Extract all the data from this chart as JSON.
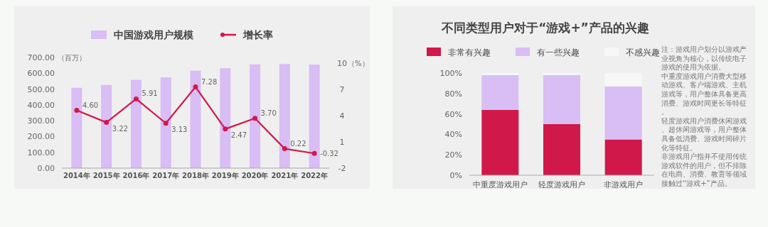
{
  "chart_data": [
    {
      "type": "bar",
      "categories": [
        "2014年",
        "2015年",
        "2016年",
        "2017年",
        "2018年",
        "2019年",
        "2020年",
        "2021年",
        "2022年"
      ],
      "series": [
        {
          "name": "中国游戏用户规模",
          "type": "bar",
          "color": "#d9bdf5",
          "values": [
            508,
            526,
            558,
            574,
            616,
            632,
            656,
            658,
            655
          ]
        },
        {
          "name": "增长率",
          "type": "line",
          "axis": "y2",
          "color": "#d0194a",
          "marker": "circle",
          "values": [
            4.6,
            3.22,
            5.91,
            3.13,
            7.28,
            2.47,
            3.7,
            0.22,
            -0.32
          ],
          "value_labels": [
            "4.60",
            "3.22",
            "5.91",
            "3.13",
            "7.28",
            "2.47",
            "3.70",
            "0.22",
            "-0.32"
          ]
        }
      ],
      "ylabel": "（百万）",
      "y2label": "（%）",
      "ylim": [
        0,
        700
      ],
      "yticks": [
        {
          "value": 0,
          "label": "0.00"
        },
        {
          "value": 100,
          "label": "100.00"
        },
        {
          "value": 200,
          "label": "200.00"
        },
        {
          "value": 300,
          "label": "300.00"
        },
        {
          "value": 400,
          "label": "400.00"
        },
        {
          "value": 500,
          "label": "500.00"
        },
        {
          "value": 600,
          "label": "600.00"
        },
        {
          "value": 700,
          "label": "700.00"
        }
      ],
      "y2lim": [
        -2,
        10
      ],
      "y2ticks": [
        -2,
        1,
        4,
        7,
        10
      ],
      "legend": "top"
    },
    {
      "type": "bar",
      "title": "不同类型用户对于“游戏+”产品的兴趣",
      "categories": [
        "中重度游戏用户",
        "轻度游戏用户",
        "非游戏用户"
      ],
      "stacked": true,
      "series": [
        {
          "name": "非常有兴趣",
          "color": "#d0194a",
          "values": [
            64,
            50,
            35
          ]
        },
        {
          "name": "有一些兴趣",
          "color": "#d9bdf5",
          "values": [
            34,
            48,
            52
          ]
        },
        {
          "name": "不感兴趣",
          "color": "#f5f8f5",
          "values": [
            2,
            2,
            13
          ]
        }
      ],
      "ylim": [
        0,
        100
      ],
      "yticks": [
        {
          "value": 0,
          "label": "0%"
        },
        {
          "value": 20,
          "label": "20%"
        },
        {
          "value": 40,
          "label": "40%"
        },
        {
          "value": 60,
          "label": "60%"
        },
        {
          "value": 80,
          "label": "80%"
        },
        {
          "value": 100,
          "label": "100%"
        }
      ],
      "legend": "top",
      "annotations": [
        "注：游戏用户划分以游戏产业视角为核心，以传统电子游戏的使用为依据。",
        "中重度游戏用户消费大型移动游戏、客户端游戏、主机游戏等，用户整体具备更高消费、游戏时间更长等特征。",
        "轻度游戏用户消费休闲游戏、超休闲游戏等，用户整体具备低消费、游戏时间碎片化等特征。",
        "非游戏用户指并不使用传统游戏软件的用户，但不排除在电商、消费、教育等领域接触过“游戏+”产品。"
      ]
    }
  ]
}
